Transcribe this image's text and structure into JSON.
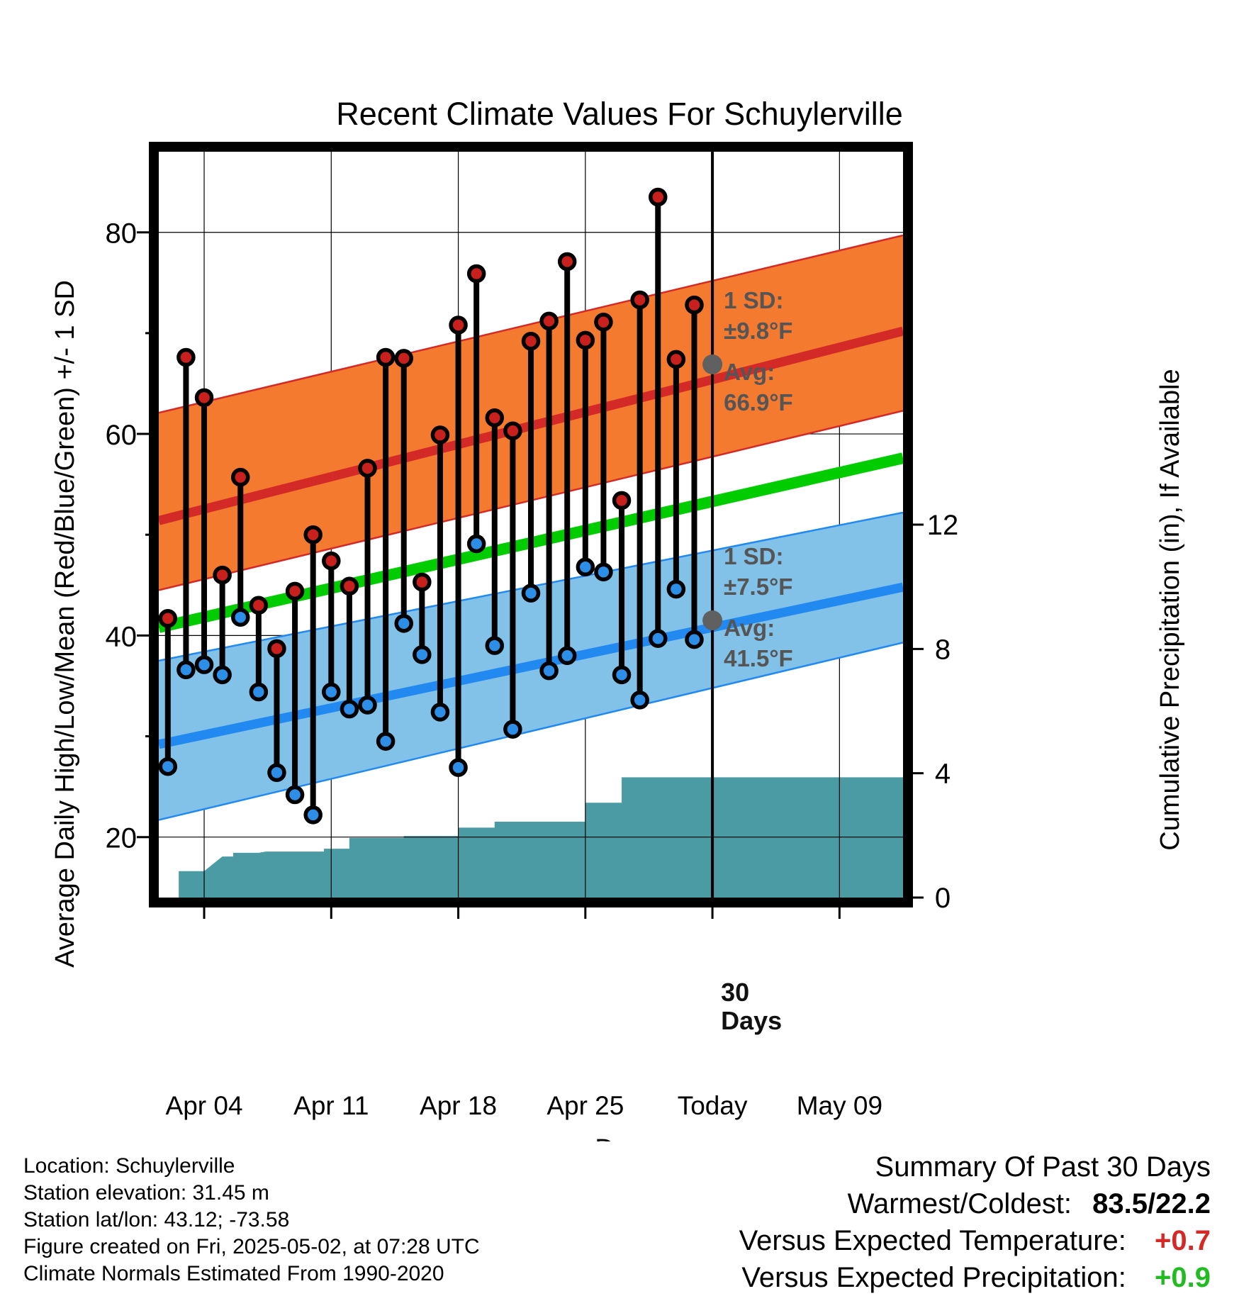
{
  "chart_data": {
    "type": "line",
    "title": "Recent Climate Values For Schuylerville",
    "xlabel": "Day",
    "ylabel": "Average Daily High/Low/Mean (Red/Blue/Green) +/- 1 SD",
    "y2label": "Cumulative Precipitation (in), If Available",
    "ylim": [
      14,
      88
    ],
    "y2lim": [
      0,
      24
    ],
    "xlim": [
      -2.5,
      38.5
    ],
    "x_unit": "days, Apr 04 = 0",
    "x_ticks": [
      {
        "x": 0,
        "label": "Apr 04"
      },
      {
        "x": 7,
        "label": "Apr 11"
      },
      {
        "x": 14,
        "label": "Apr 18"
      },
      {
        "x": 21,
        "label": "Apr 25"
      },
      {
        "x": 28,
        "label": "Today"
      },
      {
        "x": 35,
        "label": "May 09"
      }
    ],
    "y_ticks": [
      20,
      40,
      60,
      80
    ],
    "y2_ticks": [
      0,
      4,
      8,
      12
    ],
    "today_x": 28,
    "today_label_line1": "30",
    "today_label_line2": "Days",
    "daily": {
      "x": [
        -2,
        -1,
        0,
        1,
        2,
        3,
        4,
        5,
        6,
        7,
        8,
        9,
        10,
        11,
        12,
        13,
        14,
        15,
        16,
        17,
        18,
        19,
        20,
        21,
        22,
        23,
        24,
        25,
        26,
        27,
        28
      ],
      "high": [
        41.7,
        67.6,
        63.6,
        46.0,
        55.7,
        43.0,
        38.7,
        44.4,
        50.0,
        47.4,
        44.9,
        56.6,
        67.6,
        67.5,
        45.3,
        59.9,
        70.8,
        75.9,
        61.6,
        60.3,
        69.2,
        71.2,
        77.1,
        69.3,
        71.1,
        53.4,
        73.3,
        83.5,
        67.4,
        72.8,
        null
      ],
      "low": [
        27.0,
        36.6,
        37.1,
        36.1,
        41.8,
        34.4,
        26.4,
        24.2,
        22.2,
        34.4,
        32.7,
        33.1,
        29.5,
        41.2,
        38.1,
        32.4,
        26.9,
        49.1,
        39.0,
        30.7,
        44.2,
        36.5,
        38.0,
        46.8,
        46.3,
        36.1,
        33.6,
        39.7,
        44.6,
        39.6,
        null
      ]
    },
    "normals": {
      "high_avg": [
        51.4,
        70.2
      ],
      "high_sd_lower": [
        44.5,
        62.3
      ],
      "high_sd_upper": [
        62.1,
        79.7
      ],
      "mean_avg": [
        40.8,
        57.6
      ],
      "low_avg": [
        29.2,
        44.8
      ],
      "low_sd_lower": [
        21.7,
        39.3
      ],
      "low_sd_upper": [
        37.5,
        52.2
      ]
    },
    "precip": {
      "steps": [
        {
          "x_start": -2.5,
          "x_end": -1.4,
          "value": 0.0
        },
        {
          "x_start": -1.4,
          "x_end": 0.0,
          "value": 0.85
        },
        {
          "x_start": 1.0,
          "x_end": 1.6,
          "value": 1.32
        },
        {
          "x_start": 1.6,
          "x_end": 3.0,
          "value": 1.44
        },
        {
          "x_start": 3.4,
          "x_end": 5.0,
          "value": 1.48
        },
        {
          "x_start": 5.3,
          "x_end": 6.6,
          "value": 1.48
        },
        {
          "x_start": 6.6,
          "x_end": 7.5,
          "value": 1.57
        },
        {
          "x_start": 7.5,
          "x_end": 8.0,
          "value": 1.57
        },
        {
          "x_start": 8.0,
          "x_end": 11.0,
          "value": 1.92
        },
        {
          "x_start": 11.0,
          "x_end": 14.0,
          "value": 1.98
        },
        {
          "x_start": 14.0,
          "x_end": 15.0,
          "value": 2.25
        },
        {
          "x_start": 15.0,
          "x_end": 16.0,
          "value": 2.25
        },
        {
          "x_start": 16.0,
          "x_end": 21.0,
          "value": 2.44
        },
        {
          "x_start": 21.0,
          "x_end": 22.0,
          "value": 3.05
        },
        {
          "x_start": 22.0,
          "x_end": 23.0,
          "value": 3.05
        },
        {
          "x_start": 23.0,
          "x_end": 24.0,
          "value": 3.87
        },
        {
          "x_start": 24.0,
          "x_end": 38.5,
          "value": 3.87
        }
      ]
    },
    "annotations": {
      "high": {
        "sd_line1": "1 SD:",
        "sd_line2": "±9.8°F",
        "avg_line1": "Avg:",
        "avg_line2": "66.9°F",
        "avg_value": 66.9
      },
      "low": {
        "sd_line1": "1 SD:",
        "sd_line2": "±7.5°F",
        "avg_line1": "Avg:",
        "avg_line2": "41.5°F",
        "avg_value": 41.5
      }
    },
    "colors": {
      "high_band": "#f47a30",
      "high_line": "#d42a27",
      "low_band": "#82c1e8",
      "low_line": "#2189f0",
      "mean_line": "#00cc00",
      "precip": "#4a9ba3",
      "high_marker": "#c8201c",
      "low_marker": "#2c8ee6",
      "annotation": "#555555"
    }
  },
  "info": {
    "location": "Location: Schuylerville",
    "elevation": "Station elevation: 31.45 m",
    "latlon": "Station lat/lon: 43.12; -73.58",
    "created": "Figure created on Fri, 2025-05-02, at 07:28 UTC",
    "normals": "Climate Normals Estimated From 1990-2020"
  },
  "summary": {
    "title": "Summary Of Past 30 Days",
    "warm_cold_label": "Warmest/Coldest:",
    "warm_cold_value": "83.5/22.2",
    "temp_label": "Versus Expected Temperature:",
    "temp_value": "+0.7",
    "temp_color": "#d42a27",
    "precip_label": "Versus Expected Precipitation:",
    "precip_value": "+0.9",
    "precip_color": "#22bb22"
  }
}
